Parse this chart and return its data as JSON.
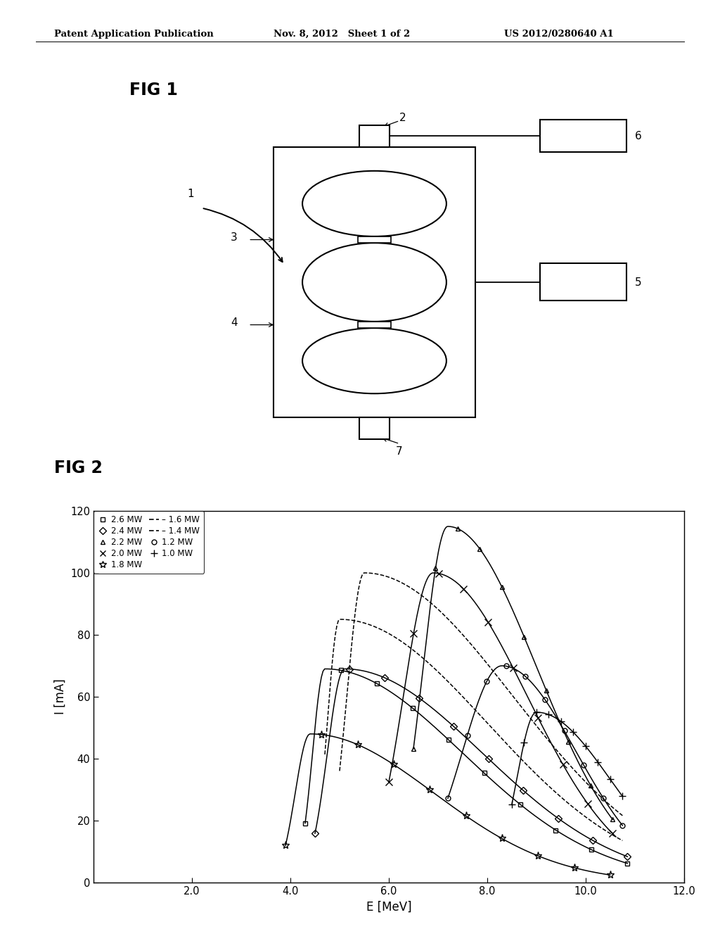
{
  "header_left": "Patent Application Publication",
  "header_mid": "Nov. 8, 2012   Sheet 1 of 2",
  "header_right": "US 2012/0280640 A1",
  "fig1_label": "FIG 1",
  "fig2_label": "FIG 2",
  "fig2_xlabel": "E [MeV]",
  "fig2_ylabel": "I [mA]",
  "fig2_xlim": [
    0.0,
    12.0
  ],
  "fig2_ylim": [
    0,
    120
  ],
  "fig2_xticks": [
    2.0,
    4.0,
    6.0,
    8.0,
    10.0,
    12.0
  ],
  "fig2_yticks": [
    0,
    20,
    40,
    60,
    80,
    100,
    120
  ],
  "curve_params": [
    {
      "mw": 2.6,
      "peak_e": 4.7,
      "peak_i": 70,
      "e0": 4.3,
      "e1": 10.9,
      "marker": "s",
      "ls": "-"
    },
    {
      "mw": 2.4,
      "peak_e": 5.2,
      "peak_i": 70,
      "e0": 4.5,
      "e1": 10.9,
      "marker": "D",
      "ls": "-"
    },
    {
      "mw": 2.2,
      "peak_e": 7.2,
      "peak_i": 115,
      "e0": 6.5,
      "e1": 10.6,
      "marker": "^",
      "ls": "-"
    },
    {
      "mw": 2.0,
      "peak_e": 6.8,
      "peak_i": 100,
      "e0": 6.0,
      "e1": 10.6,
      "marker": "x",
      "ls": "-"
    },
    {
      "mw": 1.8,
      "peak_e": 4.4,
      "peak_i": 48,
      "e0": 3.9,
      "e1": 10.4,
      "marker": "x",
      "ls": "-",
      "star": true
    },
    {
      "mw": 1.6,
      "peak_e": 5.0,
      "peak_i": 85,
      "e0": 4.7,
      "e1": 10.7,
      "marker": null,
      "ls": "-"
    },
    {
      "mw": 1.4,
      "peak_e": 5.5,
      "peak_i": 100,
      "e0": 5.0,
      "e1": 10.7,
      "marker": null,
      "ls": "-"
    },
    {
      "mw": 1.2,
      "peak_e": 8.0,
      "peak_i": 70,
      "e0": 7.2,
      "e1": 10.7,
      "marker": "o",
      "ls": "-"
    },
    {
      "mw": 1.0,
      "peak_e": 9.0,
      "peak_i": 55,
      "e0": 8.5,
      "e1": 10.7,
      "marker": "+",
      "ls": "-"
    }
  ],
  "bg_color": "#ffffff",
  "line_color": "#000000"
}
